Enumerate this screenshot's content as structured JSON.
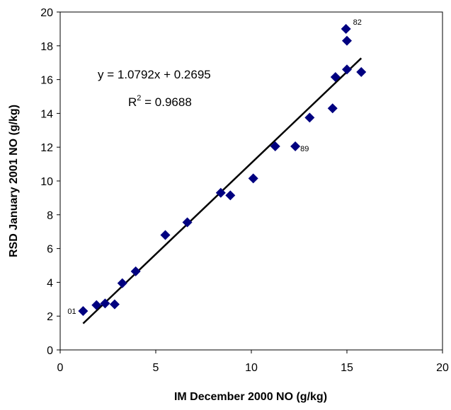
{
  "chart_data": {
    "type": "scatter",
    "xlabel": "IM December 2000 NO (g/kg)",
    "ylabel": "RSD January 2001 NO (g/kg)",
    "xlim": [
      0,
      20
    ],
    "ylim": [
      0,
      20
    ],
    "xticks": [
      "0",
      "5",
      "10",
      "15",
      "20"
    ],
    "yticks": [
      "0",
      "2",
      "4",
      "6",
      "8",
      "10",
      "12",
      "14",
      "16",
      "18",
      "20"
    ],
    "grid": false,
    "marker_color": "#000080",
    "series": [
      {
        "points": [
          {
            "x": 1.2,
            "y": 2.3
          },
          {
            "x": 1.9,
            "y": 2.65
          },
          {
            "x": 2.35,
            "y": 2.75
          },
          {
            "x": 2.85,
            "y": 2.7
          },
          {
            "x": 3.25,
            "y": 3.95
          },
          {
            "x": 3.95,
            "y": 4.65
          },
          {
            "x": 5.5,
            "y": 6.8
          },
          {
            "x": 6.65,
            "y": 7.55
          },
          {
            "x": 8.4,
            "y": 9.3
          },
          {
            "x": 8.9,
            "y": 9.15
          },
          {
            "x": 10.1,
            "y": 10.15
          },
          {
            "x": 11.25,
            "y": 12.05
          },
          {
            "x": 12.3,
            "y": 12.05
          },
          {
            "x": 13.05,
            "y": 13.75
          },
          {
            "x": 14.25,
            "y": 14.3
          },
          {
            "x": 14.4,
            "y": 16.15
          },
          {
            "x": 14.95,
            "y": 19.0
          },
          {
            "x": 15.0,
            "y": 18.3
          },
          {
            "x": 15.0,
            "y": 16.6
          },
          {
            "x": 15.75,
            "y": 16.45
          }
        ]
      }
    ],
    "trendline": {
      "slope": 1.0792,
      "intercept": 0.2695,
      "x_range": [
        1.2,
        15.75
      ],
      "equation": "y = 1.0792x + 0.2695",
      "r2_prefix": "R",
      "r2_exp": "2",
      "r2_suffix": " = 0.9688"
    },
    "annotations": [
      {
        "text": "01",
        "x": 1.2,
        "y": 2.3,
        "dx": -22,
        "dy": 4
      },
      {
        "text": "82",
        "x": 14.95,
        "y": 19.0,
        "dx": 10,
        "dy": -6
      },
      {
        "text": "89",
        "x": 12.3,
        "y": 12.05,
        "dx": 7,
        "dy": 7
      }
    ]
  }
}
